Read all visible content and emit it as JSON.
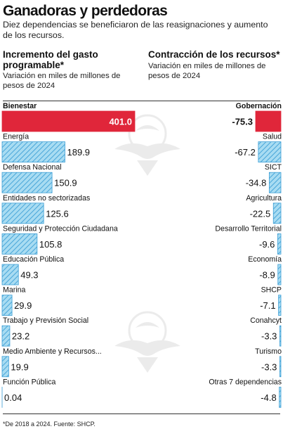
{
  "title": "Ganadoras y perdedoras",
  "subtitle": "Diez dependencias se beneficiaron de las reasignaciones y aumento de los recursos.",
  "left_panel": {
    "heading": "Incremento del gasto programable*",
    "note": "Variación en miles de millones de pesos de 2024"
  },
  "right_panel": {
    "heading": "Contracción de los recursos*",
    "note": "Variación en miles de millones de pesos de 2024"
  },
  "footnote": "*De 2018 a 2024. Fuente: SHCP.",
  "colors": {
    "highlight": "#e0263a",
    "hatch_fill": "#a8dcf2",
    "hatch_stroke": "#3d9fd6",
    "text": "#111111"
  },
  "chart_data": [
    {
      "type": "bar",
      "title": "Incremento del gasto programable*",
      "categories": [
        "Bienestar",
        "Energía",
        "Defensa Nacional",
        "Entidades no sectorizadas",
        "Seguridad y Protección Ciudadana",
        "Educación Pública",
        "Marina",
        "Trabajo y Previsión Social",
        "Medio Ambiente y Recursos...",
        "Función Pública"
      ],
      "values": [
        401.0,
        189.9,
        150.9,
        125.6,
        105.8,
        49.3,
        29.9,
        23.2,
        19.9,
        0.04
      ],
      "labels": [
        "401.0",
        "189.9",
        "150.9",
        "125.6",
        "105.8",
        "49.3",
        "29.9",
        "23.2",
        "19.9",
        "0.04"
      ],
      "highlight_index": 0
    },
    {
      "type": "bar",
      "title": "Contracción de los recursos*",
      "categories": [
        "Gobernación",
        "Salud",
        "SICT",
        "Agricultura",
        "Desarrollo Territorial",
        "Economía",
        "SHCP",
        "Conahcyt",
        "Turismo",
        "Otras 7 dependencias"
      ],
      "values": [
        -75.3,
        -67.2,
        -34.8,
        -22.5,
        -9.6,
        -8.9,
        -7.1,
        -3.3,
        -3.3,
        -4.8
      ],
      "labels": [
        "-75.3",
        "-67.2",
        "-34.8",
        "-22.5",
        "-9.6",
        "-8.9",
        "-7.1",
        "-3.3",
        "-3.3",
        "-4.8"
      ],
      "highlight_index": 0
    }
  ]
}
